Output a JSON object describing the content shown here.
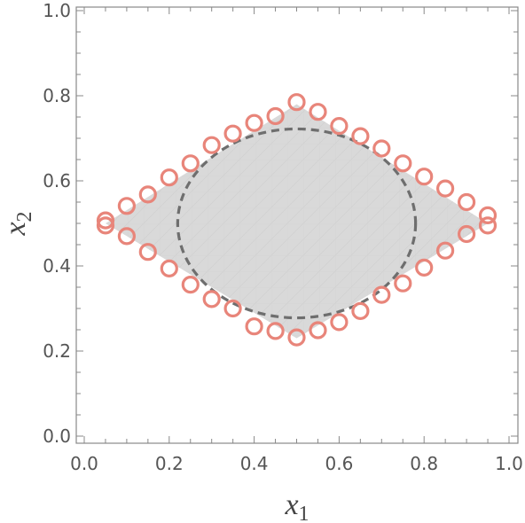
{
  "chart_data": {
    "type": "scatter",
    "title": "",
    "xlabel": "x",
    "xlabel_subscript": "1",
    "ylabel": "x",
    "ylabel_subscript": "2",
    "xlim": [
      0,
      1
    ],
    "ylim": [
      0,
      1
    ],
    "x_ticks": [
      {
        "value": 0.0,
        "label": "0.0"
      },
      {
        "value": 0.2,
        "label": "0.2"
      },
      {
        "value": 0.4,
        "label": "0.4"
      },
      {
        "value": 0.6,
        "label": "0.6"
      },
      {
        "value": 0.8,
        "label": "0.8"
      },
      {
        "value": 1.0,
        "label": "1.0"
      }
    ],
    "y_ticks": [
      {
        "value": 0.0,
        "label": "0.0"
      },
      {
        "value": 0.2,
        "label": "0.2"
      },
      {
        "value": 0.4,
        "label": "0.4"
      },
      {
        "value": 0.6,
        "label": "0.6"
      },
      {
        "value": 0.8,
        "label": "0.8"
      },
      {
        "value": 1.0,
        "label": "1.0"
      }
    ],
    "grid": false,
    "region": {
      "fill": "#d9d9d9",
      "vertices": [
        [
          0.05,
          0.5
        ],
        [
          0.5,
          0.78
        ],
        [
          0.95,
          0.5
        ],
        [
          0.5,
          0.23
        ]
      ]
    },
    "ellipse": {
      "center": [
        0.5,
        0.5
      ],
      "rx": 0.28,
      "ry": 0.222,
      "color": "#6e6e6e",
      "dashed": true
    },
    "series": [
      {
        "marker": "open-circle",
        "color": "#e8857a",
        "points": [
          [
            0.05,
            0.507
          ],
          [
            0.05,
            0.495
          ],
          [
            0.1,
            0.541
          ],
          [
            0.1,
            0.47
          ],
          [
            0.15,
            0.568
          ],
          [
            0.15,
            0.433
          ],
          [
            0.2,
            0.608
          ],
          [
            0.2,
            0.394
          ],
          [
            0.25,
            0.641
          ],
          [
            0.25,
            0.356
          ],
          [
            0.3,
            0.684
          ],
          [
            0.3,
            0.322
          ],
          [
            0.35,
            0.711
          ],
          [
            0.35,
            0.3
          ],
          [
            0.4,
            0.736
          ],
          [
            0.4,
            0.258
          ],
          [
            0.45,
            0.752
          ],
          [
            0.45,
            0.247
          ],
          [
            0.5,
            0.785
          ],
          [
            0.5,
            0.232
          ],
          [
            0.55,
            0.762
          ],
          [
            0.55,
            0.249
          ],
          [
            0.6,
            0.729
          ],
          [
            0.6,
            0.268
          ],
          [
            0.65,
            0.705
          ],
          [
            0.65,
            0.294
          ],
          [
            0.7,
            0.676
          ],
          [
            0.7,
            0.332
          ],
          [
            0.75,
            0.641
          ],
          [
            0.75,
            0.359
          ],
          [
            0.8,
            0.61
          ],
          [
            0.8,
            0.396
          ],
          [
            0.85,
            0.582
          ],
          [
            0.85,
            0.436
          ],
          [
            0.9,
            0.55
          ],
          [
            0.9,
            0.475
          ],
          [
            0.95,
            0.519
          ],
          [
            0.95,
            0.495
          ]
        ]
      }
    ]
  }
}
